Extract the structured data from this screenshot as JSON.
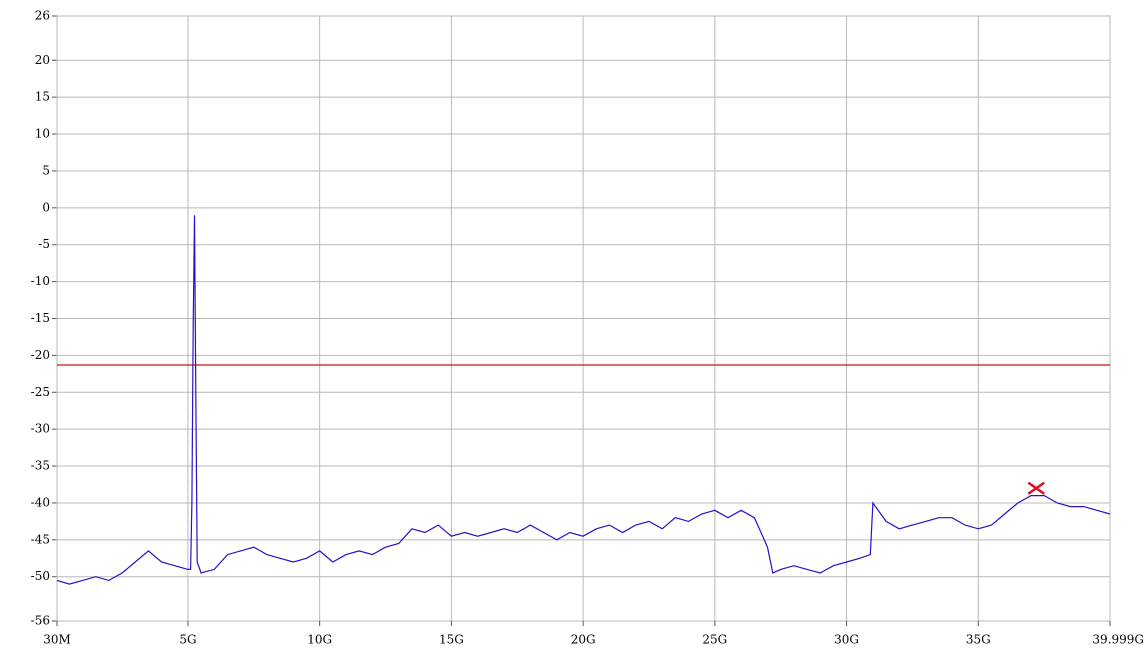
{
  "chart_data": {
    "type": "line",
    "xlim": [
      0.03,
      39.999
    ],
    "xticks": [
      {
        "value": 0.03,
        "label": "30M"
      },
      {
        "value": 5,
        "label": "5G"
      },
      {
        "value": 10,
        "label": "10G"
      },
      {
        "value": 15,
        "label": "15G"
      },
      {
        "value": 20,
        "label": "20G"
      },
      {
        "value": 25,
        "label": "25G"
      },
      {
        "value": 30,
        "label": "30G"
      },
      {
        "value": 35,
        "label": "35G"
      },
      {
        "value": 39.999,
        "label": "39.999G"
      }
    ],
    "ylim": [
      -56,
      26
    ],
    "yticks": [
      26,
      20,
      15,
      10,
      5,
      0,
      -5,
      -10,
      -15,
      -20,
      -25,
      -30,
      -35,
      -40,
      -45,
      -50,
      -56
    ],
    "grid": true,
    "series": [
      {
        "color": "#2a10c8",
        "x": [
          0.03,
          0.5,
          1.0,
          1.5,
          2.0,
          2.5,
          3.0,
          3.5,
          4.0,
          4.5,
          5.0,
          5.1,
          5.15,
          5.2,
          5.25,
          5.3,
          5.35,
          5.5,
          6.0,
          6.5,
          7.0,
          7.5,
          8.0,
          8.5,
          9.0,
          9.5,
          10.0,
          10.5,
          11.0,
          11.5,
          12.0,
          12.5,
          13.0,
          13.5,
          14.0,
          14.5,
          15.0,
          15.5,
          16.0,
          16.5,
          17.0,
          17.5,
          18.0,
          18.5,
          19.0,
          19.5,
          20.0,
          20.5,
          21.0,
          21.5,
          22.0,
          22.5,
          23.0,
          23.5,
          24.0,
          24.5,
          25.0,
          25.5,
          26.0,
          26.5,
          27.0,
          27.2,
          27.5,
          28.0,
          28.5,
          29.0,
          29.5,
          30.0,
          30.5,
          30.9,
          31.0,
          31.5,
          32.0,
          32.5,
          33.0,
          33.5,
          34.0,
          34.5,
          35.0,
          35.5,
          36.0,
          36.5,
          37.0,
          37.5,
          38.0,
          38.5,
          39.0,
          39.5,
          39.999
        ],
        "values": [
          -50.5,
          -51,
          -50.5,
          -50,
          -50.5,
          -49.5,
          -48,
          -46.5,
          -48,
          -48.5,
          -49,
          -49,
          -40,
          -16,
          -1,
          -25,
          -48,
          -49.5,
          -49,
          -47,
          -46.5,
          -46,
          -47,
          -47.5,
          -48,
          -47.5,
          -46.5,
          -48,
          -47,
          -46.5,
          -47,
          -46,
          -45.5,
          -43.5,
          -44,
          -43,
          -44.5,
          -44,
          -44.5,
          -44,
          -43.5,
          -44,
          -43,
          -44,
          -45,
          -44,
          -44.5,
          -43.5,
          -43,
          -44,
          -43,
          -42.5,
          -43.5,
          -42,
          -42.5,
          -41.5,
          -41,
          -42,
          -41,
          -42,
          -46,
          -49.5,
          -49,
          -48.5,
          -49,
          -49.5,
          -48.5,
          -48,
          -47.5,
          -47,
          -40,
          -42.5,
          -43.5,
          -43,
          -42.5,
          -42,
          -42,
          -43,
          -43.5,
          -43,
          -41.5,
          -40,
          -39,
          -39,
          -40,
          -40.5,
          -40.5,
          -41,
          -41.5
        ]
      }
    ],
    "threshold": {
      "value": -21.3,
      "color": "#d01010"
    },
    "marker": {
      "x": 37.2,
      "y": -38,
      "color": "#e01020"
    }
  }
}
